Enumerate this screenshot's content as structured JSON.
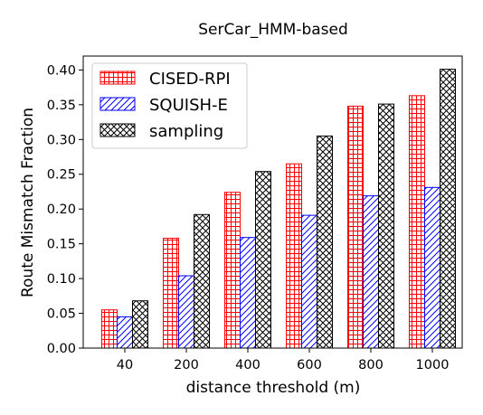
{
  "chart_data": {
    "type": "bar",
    "title": "SerCar_HMM-based",
    "xlabel": "distance threshold (m)",
    "ylabel": "Route Mismatch Fraction",
    "categories": [
      "40",
      "200",
      "400",
      "600",
      "800",
      "1000"
    ],
    "ylim": [
      0,
      0.42
    ],
    "yticks": [
      "0.00",
      "0.05",
      "0.10",
      "0.15",
      "0.20",
      "0.25",
      "0.30",
      "0.35",
      "0.40"
    ],
    "grid": false,
    "legend_position": "top-left",
    "series": [
      {
        "name": "CISED-RPI",
        "color": "#ff0000",
        "hatch": "grid",
        "values": [
          0.055,
          0.158,
          0.224,
          0.265,
          0.348,
          0.363
        ]
      },
      {
        "name": "SQUISH-E",
        "color": "#0000ff",
        "hatch": "diagonal",
        "values": [
          0.045,
          0.104,
          0.159,
          0.191,
          0.219,
          0.231
        ]
      },
      {
        "name": "sampling",
        "color": "#000000",
        "hatch": "cross",
        "values": [
          0.068,
          0.192,
          0.254,
          0.305,
          0.351,
          0.401
        ]
      }
    ]
  }
}
